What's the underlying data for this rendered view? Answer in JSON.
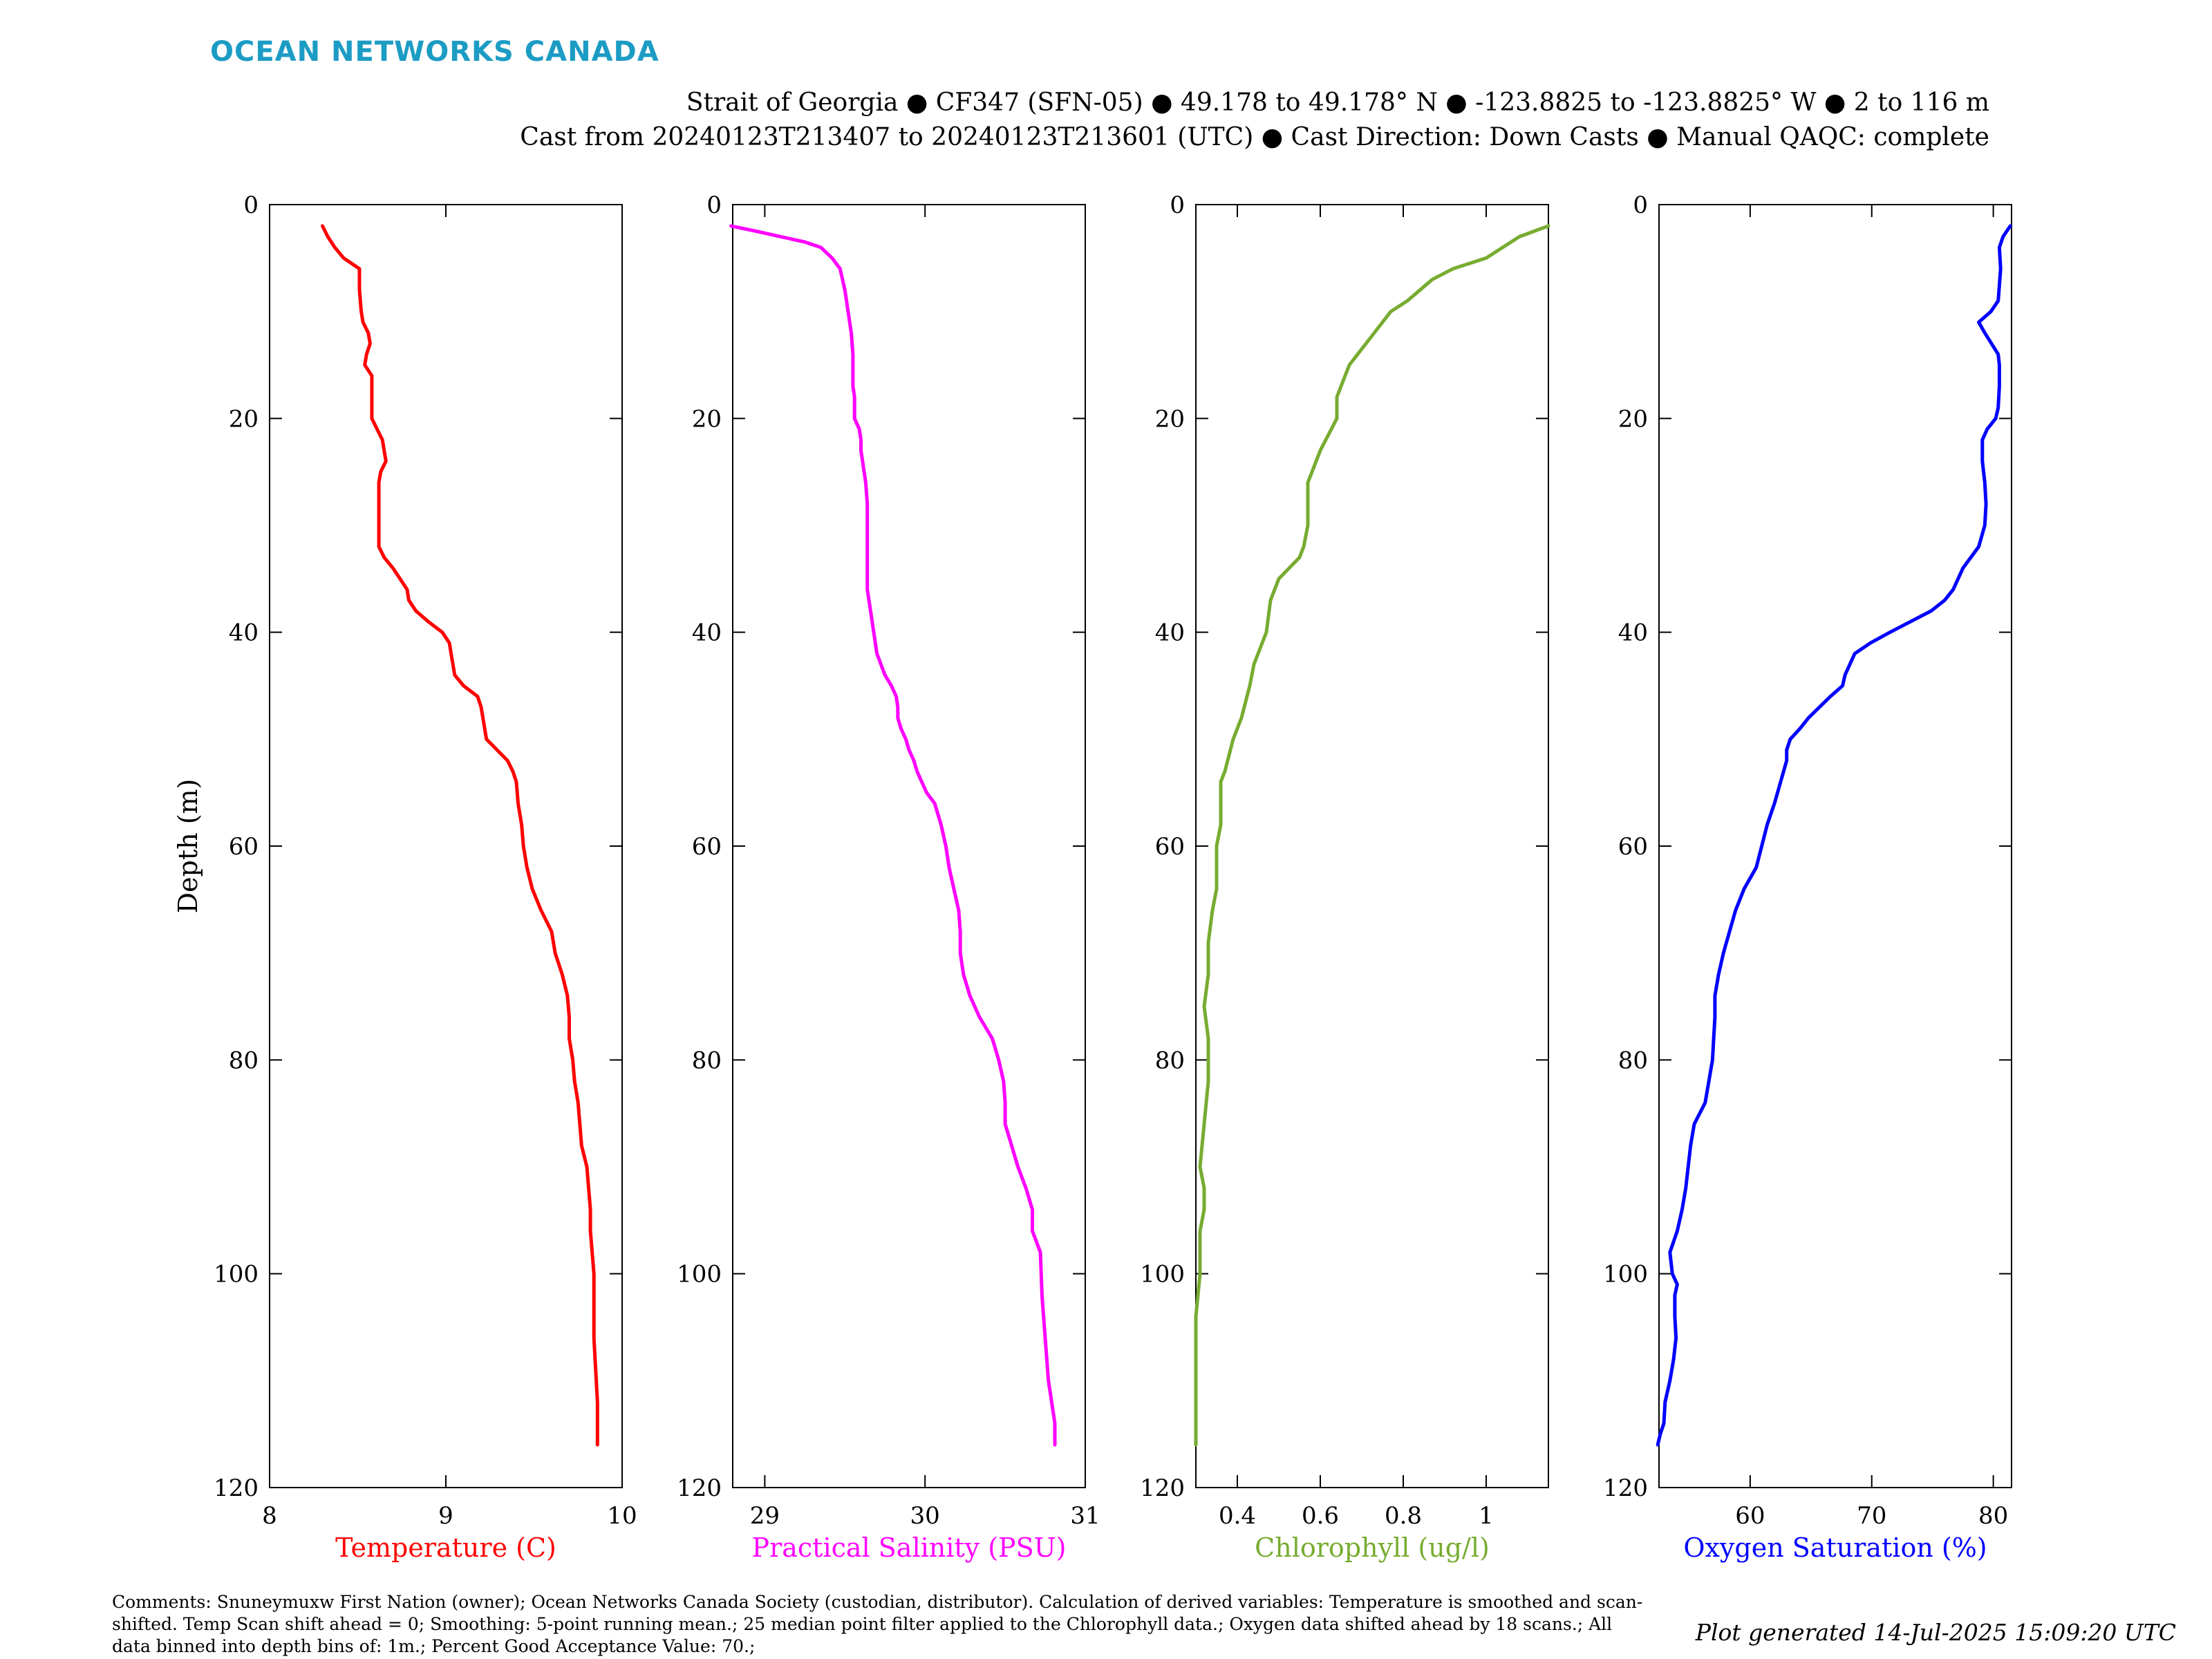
{
  "header": {
    "logo_text": "OCEAN NETWORKS CANADA",
    "line1": "Strait of Georgia ● CF347 (SFN-05) ● 49.178 to 49.178° N ● -123.8825 to -123.8825° W ● 2 to 116 m",
    "line2": "Cast from 20240123T213407 to 20240123T213601 (UTC) ● Cast Direction: Down Casts ● Manual QAQC: complete"
  },
  "footer": {
    "comments": "Comments: Snuneymuxw First Nation (owner); Ocean Networks Canada Society (custodian, distributor). Calculation of derived variables: Temperature is smoothed and scan-shifted. Temp Scan shift ahead = 0; Smoothing: 5-point running mean.; 25 median point filter applied to the Chlorophyll data.; Oxygen data shifted ahead by 18 scans.; All data binned into depth bins of: 1m.; Percent Good Acceptance Value: 70.;",
    "generated": "Plot generated 14-Jul-2025 15:09:20 UTC"
  },
  "chart_data": [
    {
      "type": "line",
      "xlabel": "Temperature (C)",
      "ylabel": "Depth (m)",
      "color": "#ff0000",
      "xlim": [
        8,
        10
      ],
      "ylim": [
        0,
        120
      ],
      "y_reversed": true,
      "xticks": [
        8,
        9,
        10
      ],
      "xtick_labels": [
        "8",
        "9",
        "10"
      ],
      "yticks": [
        0,
        20,
        40,
        60,
        80,
        100,
        120
      ],
      "series": [
        {
          "x": [
            8.3,
            8.33,
            8.37,
            8.42,
            8.51,
            8.51,
            8.52,
            8.53,
            8.56,
            8.57,
            8.55,
            8.54,
            8.58,
            8.58,
            8.58,
            8.58,
            8.61,
            8.64,
            8.66,
            8.63,
            8.62,
            8.62,
            8.62,
            8.62,
            8.65,
            8.7,
            8.74,
            8.78,
            8.79,
            8.83,
            8.9,
            8.98,
            9.02,
            9.03,
            9.05,
            9.1,
            9.18,
            9.2,
            9.21,
            9.23,
            9.29,
            9.35,
            9.38,
            9.4,
            9.41,
            9.43,
            9.44,
            9.46,
            9.49,
            9.54,
            9.6,
            9.62,
            9.66,
            9.69,
            9.7,
            9.7,
            9.72,
            9.73,
            9.75,
            9.76,
            9.77,
            9.8,
            9.82,
            9.82,
            9.84,
            9.84,
            9.86,
            9.86
          ],
          "y": [
            2,
            3,
            4,
            5,
            6,
            8,
            10,
            11,
            12,
            13,
            14,
            15,
            16,
            17,
            18,
            20,
            21,
            22,
            24,
            25,
            26,
            28,
            30,
            32,
            33,
            34,
            35,
            36,
            37,
            38,
            39,
            40,
            41,
            42,
            44,
            45,
            46,
            47,
            48,
            50,
            51,
            52,
            53,
            54,
            56,
            58,
            60,
            62,
            64,
            66,
            68,
            70,
            72,
            74,
            76,
            78,
            80,
            82,
            84,
            86,
            88,
            90,
            94,
            96,
            100,
            106,
            112,
            116
          ]
        }
      ]
    },
    {
      "type": "line",
      "xlabel": "Practical Salinity (PSU)",
      "color": "#ff00ff",
      "xlim": [
        28.8,
        31
      ],
      "ylim": [
        0,
        120
      ],
      "y_reversed": true,
      "xticks": [
        29,
        30,
        31
      ],
      "xtick_labels": [
        "29",
        "30",
        "31"
      ],
      "yticks": [
        0,
        20,
        40,
        60,
        80,
        100,
        120
      ],
      "series": [
        {
          "x": [
            28.79,
            28.95,
            29.1,
            29.25,
            29.35,
            29.42,
            29.47,
            29.5,
            29.52,
            29.54,
            29.55,
            29.55,
            29.55,
            29.55,
            29.56,
            29.56,
            29.59,
            29.6,
            29.6,
            29.61,
            29.63,
            29.64,
            29.64,
            29.64,
            29.64,
            29.64,
            29.66,
            29.67,
            29.68,
            29.69,
            29.7,
            29.75,
            29.79,
            29.82,
            29.83,
            29.83,
            29.85,
            29.88,
            29.9,
            29.93,
            29.95,
            29.98,
            30.01,
            30.06,
            30.1,
            30.13,
            30.15,
            30.18,
            30.21,
            30.22,
            30.22,
            30.24,
            30.28,
            30.34,
            30.42,
            30.46,
            30.49,
            30.5,
            30.5,
            30.54,
            30.58,
            30.63,
            30.67,
            30.67,
            30.72,
            30.73,
            30.75,
            30.77,
            30.81,
            30.81
          ],
          "y": [
            2,
            2.5,
            3,
            3.5,
            4,
            5,
            6,
            8,
            10,
            12,
            14,
            15,
            16,
            17,
            18,
            20,
            21,
            22,
            23,
            24,
            26,
            28,
            30,
            32,
            34,
            36,
            38,
            39,
            40,
            41,
            42,
            44,
            45,
            46,
            47,
            48,
            49,
            50,
            51,
            52,
            53,
            54,
            55,
            56,
            58,
            60,
            62,
            64,
            66,
            68,
            70,
            72,
            74,
            76,
            78,
            80,
            82,
            84,
            86,
            88,
            90,
            92,
            94,
            96,
            98,
            102,
            106,
            110,
            114,
            116
          ]
        }
      ]
    },
    {
      "type": "line",
      "xlabel": "Chlorophyll (ug/l)",
      "color": "#77ac30",
      "xlim": [
        0.3,
        1.15
      ],
      "ylim": [
        0,
        120
      ],
      "y_reversed": true,
      "xticks": [
        0.4,
        0.6,
        0.8,
        1.0
      ],
      "xtick_labels": [
        "0.4",
        "0.6",
        "0.8",
        "1"
      ],
      "yticks": [
        0,
        20,
        40,
        60,
        80,
        100,
        120
      ],
      "series": [
        {
          "x": [
            1.15,
            1.08,
            1.0,
            0.92,
            0.87,
            0.81,
            0.77,
            0.73,
            0.71,
            0.67,
            0.65,
            0.64,
            0.64,
            0.6,
            0.58,
            0.57,
            0.57,
            0.57,
            0.56,
            0.55,
            0.5,
            0.48,
            0.47,
            0.46,
            0.44,
            0.43,
            0.41,
            0.39,
            0.37,
            0.36,
            0.36,
            0.36,
            0.35,
            0.35,
            0.35,
            0.34,
            0.33,
            0.33,
            0.33,
            0.32,
            0.33,
            0.33,
            0.33,
            0.32,
            0.31,
            0.32,
            0.32,
            0.31,
            0.31,
            0.3,
            0.3,
            0.3
          ],
          "y": [
            2,
            3,
            5,
            6,
            7,
            9,
            10,
            12,
            13,
            15,
            17,
            18,
            20,
            23,
            25,
            26,
            28,
            30,
            32,
            33,
            35,
            37,
            40,
            41,
            43,
            45,
            48,
            50,
            53,
            54,
            56,
            58,
            60,
            62,
            64,
            66,
            69,
            70,
            72,
            75,
            78,
            80,
            82,
            86,
            90,
            92,
            94,
            96,
            100,
            104,
            110,
            116
          ]
        }
      ]
    },
    {
      "type": "line",
      "xlabel": "Oxygen Saturation (%)",
      "color": "#0000ff",
      "xlim": [
        52.5,
        81.5
      ],
      "ylim": [
        0,
        120
      ],
      "y_reversed": true,
      "xticks": [
        60,
        70,
        80
      ],
      "xtick_labels": [
        "60",
        "70",
        "80"
      ],
      "yticks": [
        0,
        20,
        40,
        60,
        80,
        100,
        120
      ],
      "series": [
        {
          "x": [
            81.4,
            80.8,
            80.5,
            80.6,
            80.4,
            79.8,
            78.8,
            79.3,
            80.4,
            80.5,
            80.5,
            80.4,
            80.2,
            79.5,
            79.1,
            79.1,
            79.3,
            79.4,
            79.3,
            78.8,
            77.5,
            76.7,
            76.0,
            74.9,
            73.2,
            71.5,
            69.9,
            68.6,
            67.8,
            67.6,
            66.6,
            64.8,
            64.1,
            63.3,
            63.0,
            63.0,
            62.5,
            62.0,
            61.4,
            60.5,
            59.5,
            58.8,
            58.3,
            57.8,
            57.4,
            57.1,
            57.1,
            57.0,
            56.9,
            56.3,
            55.4,
            55.1,
            54.7,
            54.4,
            54.0,
            53.4,
            53.6,
            54.0,
            53.8,
            53.8,
            53.9,
            53.7,
            53.4,
            53.0,
            52.9,
            52.6,
            52.4
          ],
          "y": [
            2,
            3,
            4,
            6,
            9,
            10,
            11,
            12,
            14,
            15,
            17,
            19,
            20,
            21,
            22,
            24,
            26,
            28,
            30,
            32,
            34,
            36,
            37,
            38,
            39,
            40,
            41,
            42,
            44,
            45,
            46,
            48,
            49,
            50,
            51,
            52,
            54,
            56,
            58,
            62,
            64,
            66,
            68,
            70,
            72,
            74,
            76,
            78,
            80,
            84,
            86,
            88,
            92,
            94,
            96,
            98,
            100,
            101,
            102,
            104,
            106,
            108,
            110,
            112,
            114,
            115,
            116
          ]
        }
      ]
    }
  ]
}
